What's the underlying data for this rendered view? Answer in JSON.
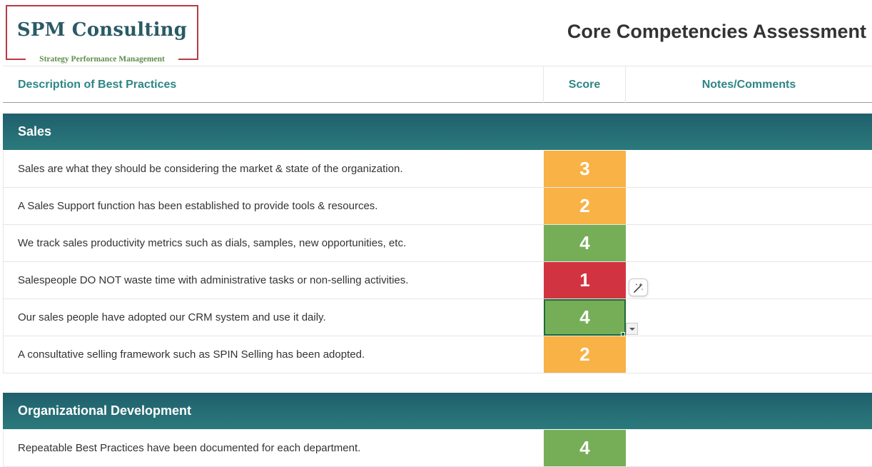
{
  "logo": {
    "name": "SPM Consulting",
    "tagline": "Strategy Performance Management"
  },
  "page_title": "Core Competencies Assessment",
  "columns": {
    "description": "Description of Best Practices",
    "score": "Score",
    "notes": "Notes/Comments"
  },
  "score_colors": {
    "1": "#d13440",
    "2": "#f9b246",
    "3": "#f9b246",
    "4": "#76ae57"
  },
  "sections": [
    {
      "title": "Sales",
      "rows": [
        {
          "description": "Sales are what they should be considering the market & state of the organization.",
          "score": "3",
          "notes": ""
        },
        {
          "description": "A Sales Support function has been established to provide tools & resources.",
          "score": "2",
          "notes": ""
        },
        {
          "description": "We track sales productivity metrics such as dials, samples, new opportunities, etc.",
          "score": "4",
          "notes": ""
        },
        {
          "description": "Salespeople DO NOT waste time with administrative tasks or non-selling activities.",
          "score": "1",
          "notes": ""
        },
        {
          "description": "Our sales people have adopted our CRM system and use it daily.",
          "score": "4",
          "notes": ""
        },
        {
          "description": "A consultative selling framework such as SPIN Selling has been adopted.",
          "score": "2",
          "notes": ""
        }
      ]
    },
    {
      "title": "Organizational Development",
      "rows": [
        {
          "description": "Repeatable Best Practices have been documented for each department.",
          "score": "4",
          "notes": ""
        }
      ]
    }
  ],
  "icons": {
    "magic": "magic-wand-icon",
    "dropdown": "chevron-down-icon"
  }
}
